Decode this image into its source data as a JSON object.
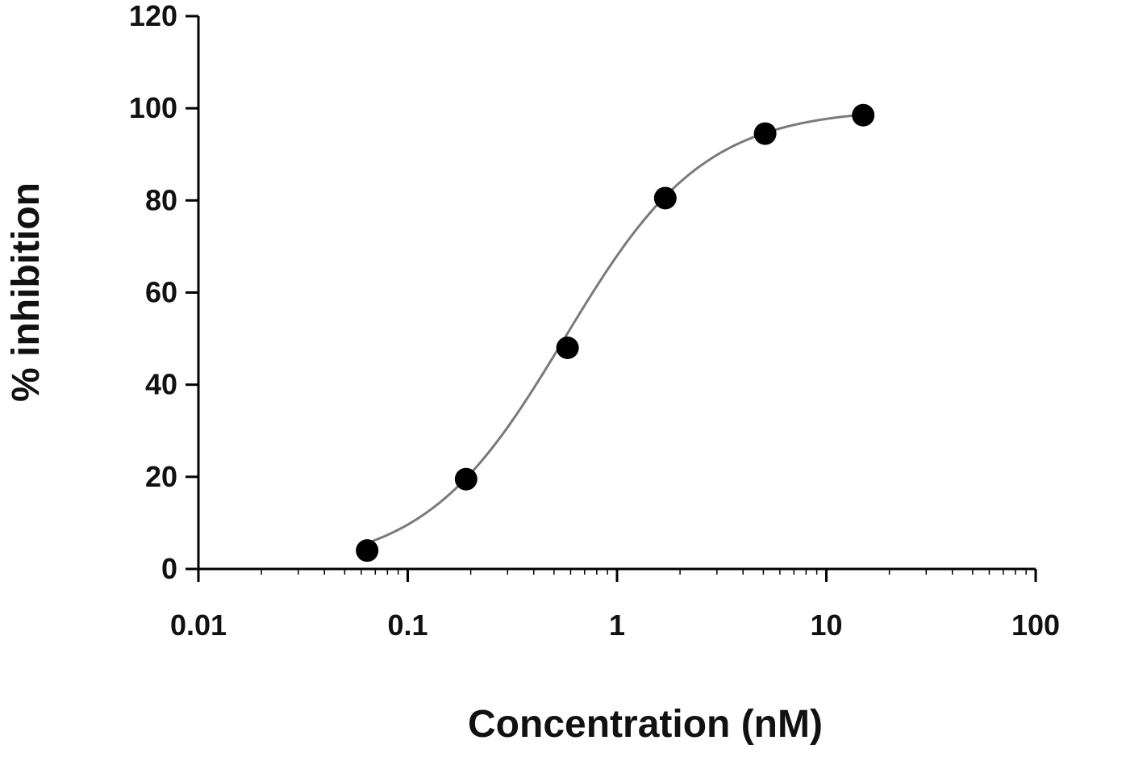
{
  "chart_data": {
    "type": "scatter",
    "title": "",
    "xlabel": "Concentration (nM)",
    "ylabel": "% inhibition",
    "x_scale": "log",
    "xlim": [
      0.01,
      100
    ],
    "ylim": [
      0,
      120
    ],
    "x_ticks": [
      0.01,
      0.1,
      1,
      10,
      100
    ],
    "x_tick_labels": [
      "0.01",
      "0.1",
      "1",
      "10",
      "100"
    ],
    "y_ticks": [
      0,
      20,
      40,
      60,
      80,
      100,
      120
    ],
    "y_tick_labels": [
      "0",
      "20",
      "40",
      "60",
      "80",
      "100",
      "120"
    ],
    "grid": false,
    "series": [
      {
        "marker": "filled-circle",
        "x": [
          0.064,
          0.19,
          0.58,
          1.7,
          5.1,
          15
        ],
        "y": [
          4,
          19.5,
          48,
          80.5,
          94.5,
          98.5
        ]
      }
    ],
    "fit_curve": {
      "type": "four-parameter-logistic",
      "bottom": 0,
      "top": 100,
      "ec50": 0.56,
      "hill": 1.3,
      "x_range": [
        0.064,
        15
      ]
    },
    "colors": {
      "points": "#000000",
      "curve": "#7a7a7a",
      "axes": "#000000"
    }
  }
}
